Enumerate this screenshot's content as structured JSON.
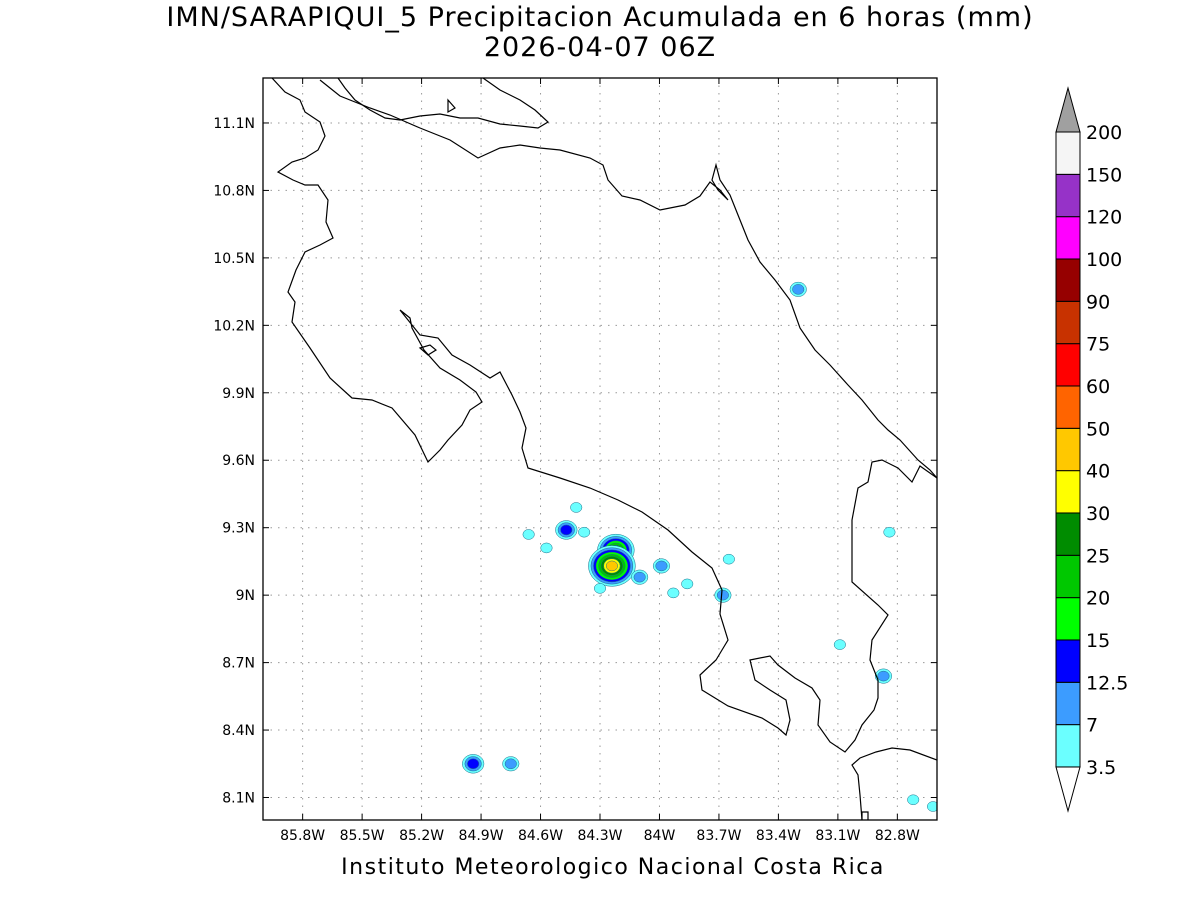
{
  "title": {
    "line1": "IMN/SARAPIQUI_5 Precipitacion Acumulada en 6 horas (mm)",
    "line2": "2026-04-07 06Z"
  },
  "footer": "Instituto Meteorologico Nacional Costa Rica",
  "map": {
    "lon_range": [
      -86.0,
      -82.6
    ],
    "lat_range": [
      8.0,
      11.3
    ],
    "x_ticks": [
      {
        "lon": -85.8,
        "label": "85.8W"
      },
      {
        "lon": -85.5,
        "label": "85.5W"
      },
      {
        "lon": -85.2,
        "label": "85.2W"
      },
      {
        "lon": -84.9,
        "label": "84.9W"
      },
      {
        "lon": -84.6,
        "label": "84.6W"
      },
      {
        "lon": -84.3,
        "label": "84.3W"
      },
      {
        "lon": -84.0,
        "label": "84W"
      },
      {
        "lon": -83.7,
        "label": "83.7W"
      },
      {
        "lon": -83.4,
        "label": "83.4W"
      },
      {
        "lon": -83.1,
        "label": "83.1W"
      },
      {
        "lon": -82.8,
        "label": "82.8W"
      }
    ],
    "y_ticks": [
      {
        "lat": 11.1,
        "label": "11.1N"
      },
      {
        "lat": 10.8,
        "label": "10.8N"
      },
      {
        "lat": 10.5,
        "label": "10.5N"
      },
      {
        "lat": 10.2,
        "label": "10.2N"
      },
      {
        "lat": 9.9,
        "label": "9.9N"
      },
      {
        "lat": 9.6,
        "label": "9.6N"
      },
      {
        "lat": 9.3,
        "label": "9.3N"
      },
      {
        "lat": 9.0,
        "label": "9N"
      },
      {
        "lat": 8.7,
        "label": "8.7N"
      },
      {
        "lat": 8.4,
        "label": "8.4N"
      },
      {
        "lat": 8.1,
        "label": "8.1N"
      }
    ],
    "grid": true,
    "coastline_color": "#000000",
    "precip_cells": [
      {
        "lon": -83.3,
        "lat": 10.36,
        "value": 7
      },
      {
        "lon": -84.47,
        "lat": 9.29,
        "value": 12.5
      },
      {
        "lon": -84.22,
        "lat": 9.2,
        "value": 25
      },
      {
        "lon": -84.24,
        "lat": 9.13,
        "value": 40
      },
      {
        "lon": -84.1,
        "lat": 9.08,
        "value": 7
      },
      {
        "lon": -83.99,
        "lat": 9.13,
        "value": 7
      },
      {
        "lon": -83.86,
        "lat": 9.05,
        "value": 3.5
      },
      {
        "lon": -83.68,
        "lat": 9.0,
        "value": 7
      },
      {
        "lon": -84.42,
        "lat": 9.39,
        "value": 3.5
      },
      {
        "lon": -84.38,
        "lat": 9.28,
        "value": 3.5
      },
      {
        "lon": -84.57,
        "lat": 9.21,
        "value": 3.5
      },
      {
        "lon": -84.66,
        "lat": 9.27,
        "value": 3.5
      },
      {
        "lon": -84.3,
        "lat": 9.03,
        "value": 3.5
      },
      {
        "lon": -83.93,
        "lat": 9.01,
        "value": 3.5
      },
      {
        "lon": -83.65,
        "lat": 9.16,
        "value": 3.5
      },
      {
        "lon": -84.94,
        "lat": 8.25,
        "value": 12.5
      },
      {
        "lon": -84.75,
        "lat": 8.25,
        "value": 7
      },
      {
        "lon": -82.87,
        "lat": 8.64,
        "value": 7
      },
      {
        "lon": -83.09,
        "lat": 8.78,
        "value": 3.5
      },
      {
        "lon": -82.84,
        "lat": 9.28,
        "value": 3.5
      },
      {
        "lon": -82.72,
        "lat": 8.09,
        "value": 3.5
      },
      {
        "lon": -82.62,
        "lat": 8.06,
        "value": 3.5
      }
    ]
  },
  "colorbar": {
    "levels": [
      {
        "color": "#6bffff"
      },
      {
        "color": "#3c9cff"
      },
      {
        "color": "#0000ff"
      },
      {
        "color": "#00ff00"
      },
      {
        "color": "#00c800"
      },
      {
        "color": "#008c00"
      },
      {
        "color": "#ffff00"
      },
      {
        "color": "#ffc800"
      },
      {
        "color": "#ff6400"
      },
      {
        "color": "#ff0000"
      },
      {
        "color": "#c83200"
      },
      {
        "color": "#960000"
      },
      {
        "color": "#ff00ff"
      },
      {
        "color": "#9632c8"
      },
      {
        "color": "#f5f5f5"
      }
    ],
    "low_arrow_color": "#ffffff",
    "high_arrow_color": "#a0a0a0",
    "labels": [
      "3.5",
      "7",
      "12.5",
      "15",
      "20",
      "25",
      "30",
      "40",
      "50",
      "60",
      "75",
      "90",
      "100",
      "120",
      "150",
      "200"
    ]
  }
}
